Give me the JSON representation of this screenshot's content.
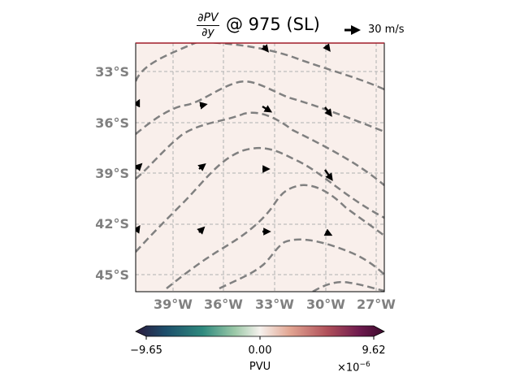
{
  "title": {
    "fraction_numerator": "∂PV",
    "fraction_denominator": "∂y",
    "rest": "@ 975 (SL)"
  },
  "quiver_key": {
    "label": "30 m/s"
  },
  "map": {
    "background_color": "#f9efeb",
    "frame_color": "#a01c28",
    "grid_color": "#b0b0b0",
    "contour_color": "#808080",
    "latitude_ticks": [
      "33°S",
      "36°S",
      "39°S",
      "42°S",
      "45°S"
    ],
    "longitude_ticks": [
      "39°W",
      "36°W",
      "33°W",
      "30°W",
      "27°W"
    ],
    "lon_range": [
      -41.2,
      -26.5
    ],
    "lat_range": [
      -31.5,
      -46.1
    ]
  },
  "colorbar": {
    "tick_labels": [
      "−9.65",
      "0.00",
      "9.62"
    ],
    "label": "PVU",
    "exponent_base": "×10",
    "exponent_power": "−6",
    "colormap": [
      "#2b1a3d",
      "#1d4e6b",
      "#2f8a7e",
      "#9cc9a8",
      "#f6f2ee",
      "#e2a592",
      "#b0505a",
      "#6e1a4e",
      "#3d0b2e"
    ]
  }
}
